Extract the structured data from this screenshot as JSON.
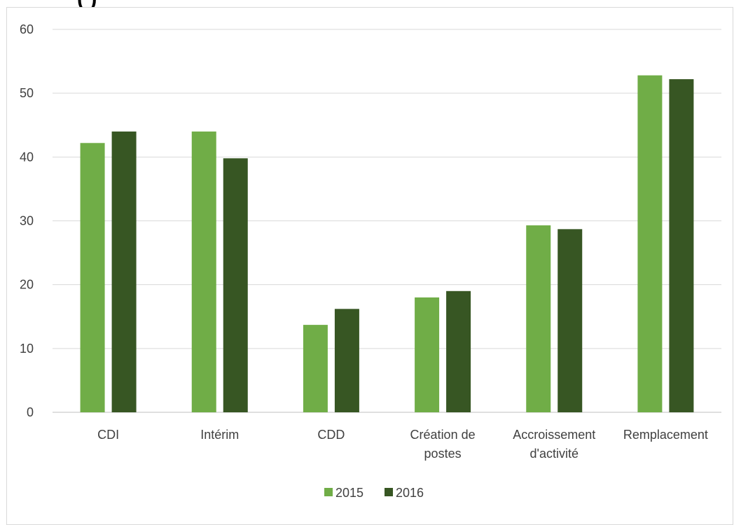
{
  "chart_data": {
    "type": "bar",
    "title": "(          )",
    "xlabel": "",
    "ylabel": "",
    "ylim": [
      0,
      60
    ],
    "yticks": [
      0,
      10,
      20,
      30,
      40,
      50,
      60
    ],
    "grid": true,
    "legend_position": "bottom",
    "categories": [
      [
        "CDI"
      ],
      [
        "Intérim"
      ],
      [
        "CDD"
      ],
      [
        "Création de",
        "postes"
      ],
      [
        "Accroissement",
        "d'activité"
      ],
      [
        "Remplacement"
      ]
    ],
    "series": [
      {
        "name": "2015",
        "color": "#70ad47",
        "values": [
          42.2,
          44.0,
          13.7,
          18.0,
          29.3,
          52.8
        ]
      },
      {
        "name": "2016",
        "color": "#375623",
        "values": [
          44.0,
          39.8,
          16.2,
          19.0,
          28.7,
          52.2
        ]
      }
    ]
  }
}
